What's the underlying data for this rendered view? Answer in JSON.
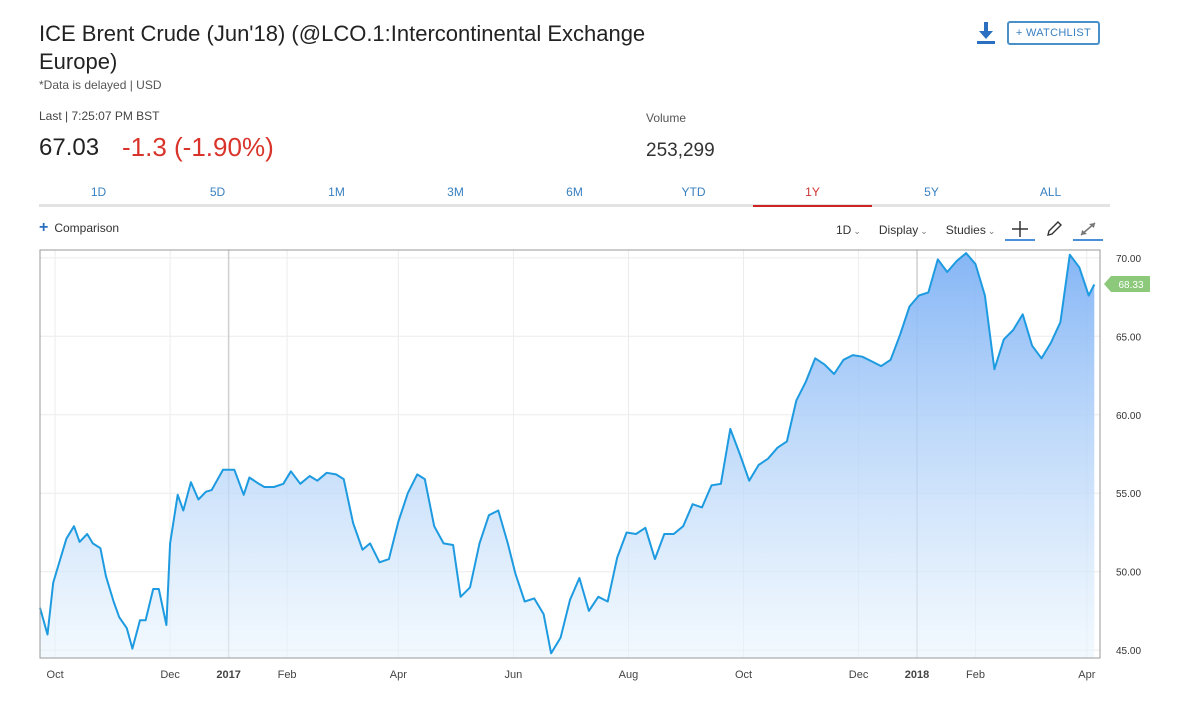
{
  "header": {
    "title": "ICE Brent Crude (Jun'18) (@LCO.1:Intercontinental Exchange Europe)",
    "subtitle": "*Data is delayed | USD",
    "watchlist_label": "+ WATCHLIST",
    "download_icon": "download-icon"
  },
  "quote": {
    "last_label": "Last | 7:25:07 PM BST",
    "last_price": "67.03",
    "change": "-1.3 (-1.90%)",
    "volume_label": "Volume",
    "volume_value": "253,299"
  },
  "range_tabs": [
    "1D",
    "5D",
    "1M",
    "3M",
    "6M",
    "YTD",
    "1Y",
    "5Y",
    "ALL"
  ],
  "active_tab": "1Y",
  "toolbar": {
    "comparison_label": "Comparison",
    "interval_label": "1D",
    "display_label": "Display",
    "studies_label": "Studies",
    "crosshair_icon": "crosshair-icon",
    "draw_icon": "pencil-icon",
    "expand_icon": "expand-icon"
  },
  "colors": {
    "line": "#1e9be0",
    "accent": "#3a80c0",
    "negative": "#d9342b",
    "last_badge": "#8cc97a"
  },
  "chart_data": {
    "type": "area",
    "title": "",
    "xlabel": "",
    "ylabel": "",
    "ylim": [
      44.5,
      70.5
    ],
    "y_ticks": [
      "45.00",
      "50.00",
      "55.00",
      "60.00",
      "65.00",
      "70.00"
    ],
    "y_tick_values": [
      45,
      50,
      55,
      60,
      65,
      70
    ],
    "x_ticks": [
      {
        "label": "Oct",
        "date": "2016-10-01",
        "bold": false
      },
      {
        "label": "Dec",
        "date": "2016-12-01",
        "bold": false
      },
      {
        "label": "2017",
        "date": "2017-01-01",
        "bold": true
      },
      {
        "label": "Feb",
        "date": "2017-02-01",
        "bold": false
      },
      {
        "label": "Apr",
        "date": "2017-04-01",
        "bold": false
      },
      {
        "label": "Jun",
        "date": "2017-06-01",
        "bold": false
      },
      {
        "label": "Aug",
        "date": "2017-08-01",
        "bold": false
      },
      {
        "label": "Oct",
        "date": "2017-10-01",
        "bold": false
      },
      {
        "label": "Dec",
        "date": "2017-12-01",
        "bold": false
      },
      {
        "label": "2018",
        "date": "2018-01-01",
        "bold": true
      },
      {
        "label": "Feb",
        "date": "2018-02-01",
        "bold": false
      },
      {
        "label": "Apr",
        "date": "2018-04-01",
        "bold": false
      }
    ],
    "last_value": "68.33",
    "grid": true,
    "series": [
      {
        "points": [
          [
            "2016-09-23",
            47.7
          ],
          [
            "2016-09-27",
            46.0
          ],
          [
            "2016-09-30",
            49.3
          ],
          [
            "2016-10-04",
            50.9
          ],
          [
            "2016-10-07",
            52.1
          ],
          [
            "2016-10-11",
            52.9
          ],
          [
            "2016-10-14",
            51.9
          ],
          [
            "2016-10-18",
            52.4
          ],
          [
            "2016-10-21",
            51.8
          ],
          [
            "2016-10-25",
            51.5
          ],
          [
            "2016-10-28",
            49.7
          ],
          [
            "2016-11-01",
            48.1
          ],
          [
            "2016-11-04",
            47.1
          ],
          [
            "2016-11-08",
            46.4
          ],
          [
            "2016-11-11",
            45.1
          ],
          [
            "2016-11-15",
            46.9
          ],
          [
            "2016-11-18",
            46.9
          ],
          [
            "2016-11-22",
            48.9
          ],
          [
            "2016-11-25",
            48.9
          ],
          [
            "2016-11-29",
            46.6
          ],
          [
            "2016-12-01",
            51.8
          ],
          [
            "2016-12-05",
            54.9
          ],
          [
            "2016-12-08",
            53.9
          ],
          [
            "2016-12-12",
            55.7
          ],
          [
            "2016-12-16",
            54.6
          ],
          [
            "2016-12-20",
            55.1
          ],
          [
            "2016-12-23",
            55.2
          ],
          [
            "2016-12-29",
            56.5
          ],
          [
            "2017-01-04",
            56.5
          ],
          [
            "2017-01-09",
            54.9
          ],
          [
            "2017-01-12",
            56.0
          ],
          [
            "2017-01-17",
            55.6
          ],
          [
            "2017-01-20",
            55.4
          ],
          [
            "2017-01-25",
            55.4
          ],
          [
            "2017-01-30",
            55.6
          ],
          [
            "2017-02-03",
            56.4
          ],
          [
            "2017-02-08",
            55.6
          ],
          [
            "2017-02-13",
            56.1
          ],
          [
            "2017-02-17",
            55.8
          ],
          [
            "2017-02-22",
            56.3
          ],
          [
            "2017-02-27",
            56.2
          ],
          [
            "2017-03-03",
            55.9
          ],
          [
            "2017-03-08",
            53.1
          ],
          [
            "2017-03-13",
            51.4
          ],
          [
            "2017-03-17",
            51.8
          ],
          [
            "2017-03-22",
            50.6
          ],
          [
            "2017-03-27",
            50.8
          ],
          [
            "2017-04-01",
            53.2
          ],
          [
            "2017-04-06",
            55.0
          ],
          [
            "2017-04-11",
            56.2
          ],
          [
            "2017-04-15",
            55.9
          ],
          [
            "2017-04-20",
            52.9
          ],
          [
            "2017-04-25",
            51.8
          ],
          [
            "2017-04-30",
            51.7
          ],
          [
            "2017-05-04",
            48.4
          ],
          [
            "2017-05-09",
            49.0
          ],
          [
            "2017-05-14",
            51.8
          ],
          [
            "2017-05-19",
            53.6
          ],
          [
            "2017-05-24",
            53.9
          ],
          [
            "2017-05-29",
            51.8
          ],
          [
            "2017-06-02",
            49.9
          ],
          [
            "2017-06-07",
            48.1
          ],
          [
            "2017-06-12",
            48.3
          ],
          [
            "2017-06-17",
            47.3
          ],
          [
            "2017-06-21",
            44.8
          ],
          [
            "2017-06-26",
            45.8
          ],
          [
            "2017-07-01",
            48.2
          ],
          [
            "2017-07-06",
            49.6
          ],
          [
            "2017-07-11",
            47.5
          ],
          [
            "2017-07-16",
            48.4
          ],
          [
            "2017-07-21",
            48.1
          ],
          [
            "2017-07-26",
            50.9
          ],
          [
            "2017-07-31",
            52.5
          ],
          [
            "2017-08-05",
            52.4
          ],
          [
            "2017-08-10",
            52.8
          ],
          [
            "2017-08-15",
            50.8
          ],
          [
            "2017-08-20",
            52.4
          ],
          [
            "2017-08-25",
            52.4
          ],
          [
            "2017-08-30",
            52.9
          ],
          [
            "2017-09-04",
            54.3
          ],
          [
            "2017-09-09",
            54.1
          ],
          [
            "2017-09-14",
            55.5
          ],
          [
            "2017-09-19",
            55.6
          ],
          [
            "2017-09-24",
            59.1
          ],
          [
            "2017-09-29",
            57.5
          ],
          [
            "2017-10-04",
            55.8
          ],
          [
            "2017-10-09",
            56.8
          ],
          [
            "2017-10-14",
            57.2
          ],
          [
            "2017-10-19",
            57.9
          ],
          [
            "2017-10-24",
            58.3
          ],
          [
            "2017-10-29",
            60.9
          ],
          [
            "2017-11-03",
            62.1
          ],
          [
            "2017-11-08",
            63.6
          ],
          [
            "2017-11-13",
            63.2
          ],
          [
            "2017-11-18",
            62.6
          ],
          [
            "2017-11-23",
            63.5
          ],
          [
            "2017-11-28",
            63.8
          ],
          [
            "2017-12-03",
            63.7
          ],
          [
            "2017-12-08",
            63.4
          ],
          [
            "2017-12-13",
            63.1
          ],
          [
            "2017-12-18",
            63.5
          ],
          [
            "2017-12-23",
            65.1
          ],
          [
            "2017-12-28",
            66.9
          ],
          [
            "2018-01-02",
            67.6
          ],
          [
            "2018-01-07",
            67.8
          ],
          [
            "2018-01-12",
            69.9
          ],
          [
            "2018-01-17",
            69.1
          ],
          [
            "2018-01-22",
            69.8
          ],
          [
            "2018-01-27",
            70.3
          ],
          [
            "2018-02-01",
            69.6
          ],
          [
            "2018-02-06",
            67.6
          ],
          [
            "2018-02-11",
            62.9
          ],
          [
            "2018-02-16",
            64.8
          ],
          [
            "2018-02-21",
            65.4
          ],
          [
            "2018-02-26",
            66.4
          ],
          [
            "2018-03-03",
            64.4
          ],
          [
            "2018-03-08",
            63.6
          ],
          [
            "2018-03-13",
            64.6
          ],
          [
            "2018-03-18",
            65.9
          ],
          [
            "2018-03-23",
            70.2
          ],
          [
            "2018-03-28",
            69.4
          ],
          [
            "2018-04-02",
            67.6
          ],
          [
            "2018-04-05",
            68.3
          ]
        ]
      }
    ]
  }
}
